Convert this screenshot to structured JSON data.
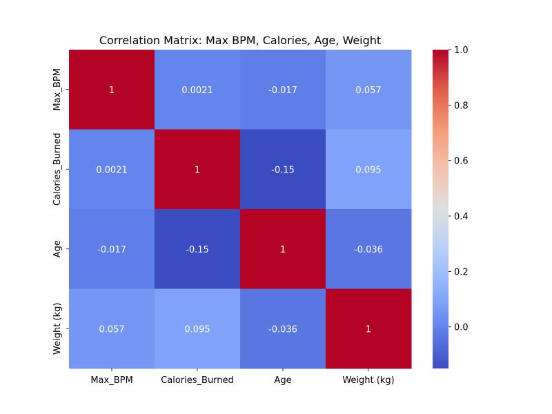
{
  "chart_data": {
    "type": "heatmap",
    "title": "Correlation Matrix: Max BPM, Calories, Age, Weight",
    "xlabel": "",
    "ylabel": "",
    "x_labels": [
      "Max_BPM",
      "Calories_Burned",
      "Age",
      "Weight (kg)"
    ],
    "y_labels": [
      "Max_BPM",
      "Calories_Burned",
      "Age",
      "Weight (kg)"
    ],
    "values": [
      [
        1,
        0.0021,
        -0.017,
        0.057
      ],
      [
        0.0021,
        1,
        -0.15,
        0.095
      ],
      [
        -0.017,
        -0.15,
        1,
        -0.036
      ],
      [
        0.057,
        0.095,
        -0.036,
        1
      ]
    ],
    "annotations": [
      [
        "1",
        "0.0021",
        "-0.017",
        "0.057"
      ],
      [
        "0.0021",
        "1",
        "-0.15",
        "0.095"
      ],
      [
        "-0.017",
        "-0.15",
        "1",
        "-0.036"
      ],
      [
        "0.057",
        "0.095",
        "-0.036",
        "1"
      ]
    ],
    "colormap": "coolwarm",
    "vmin": -0.15,
    "vmax": 1.0,
    "colorbar_ticks": [
      -0.0,
      0.2,
      0.4,
      0.6,
      0.8,
      1.0
    ],
    "colorbar_tick_labels": [
      "0.0",
      "0.2",
      "0.4",
      "0.6",
      "0.8",
      "1.0"
    ],
    "annotation_color": "#ffffff",
    "grid": false
  }
}
